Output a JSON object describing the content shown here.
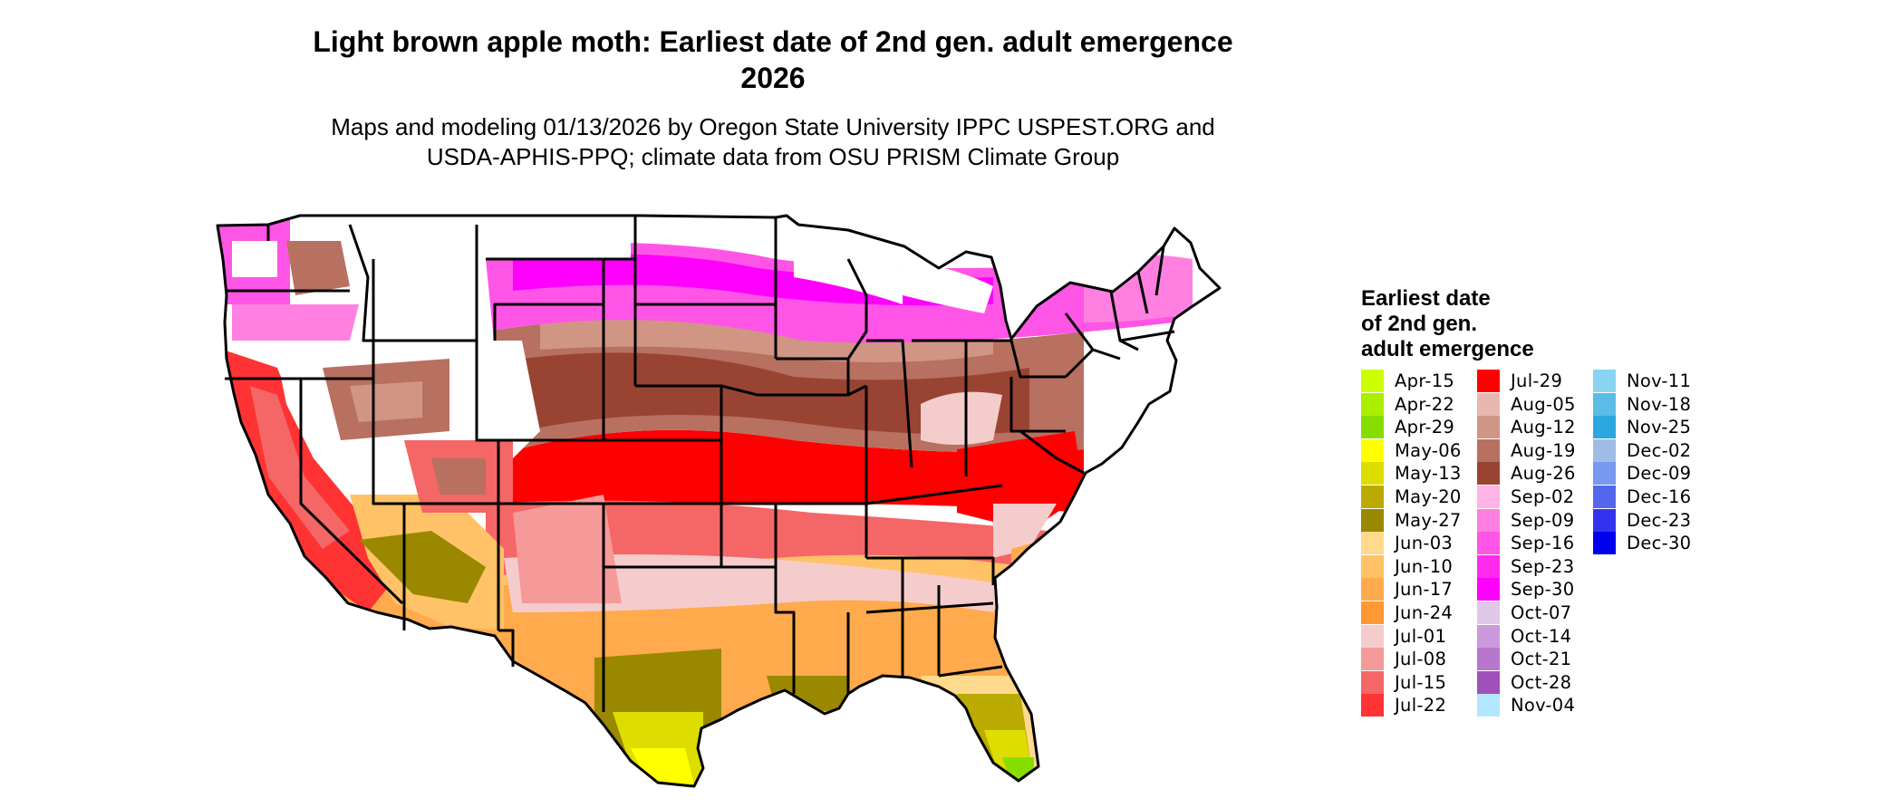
{
  "header": {
    "title_line1": "Light brown apple moth: Earliest date of 2nd gen. adult emergence",
    "title_line2": "2026",
    "subtitle_line1": "Maps and modeling 01/13/2026 by Oregon State University IPPC USPEST.ORG and",
    "subtitle_line2": "USDA-APHIS-PPQ; climate data from OSU PRISM Climate Group"
  },
  "legend": {
    "title_line1": "Earliest date",
    "title_line2": "of 2nd gen.",
    "title_line3": "adult emergence",
    "items": [
      {
        "label": "Apr-15",
        "color": "#ccff00"
      },
      {
        "label": "Apr-22",
        "color": "#aaee00"
      },
      {
        "label": "Apr-29",
        "color": "#88dd00"
      },
      {
        "label": "May-06",
        "color": "#ffff00"
      },
      {
        "label": "May-13",
        "color": "#dddd00"
      },
      {
        "label": "May-20",
        "color": "#bbaa00"
      },
      {
        "label": "May-27",
        "color": "#998800"
      },
      {
        "label": "Jun-03",
        "color": "#ffd98c"
      },
      {
        "label": "Jun-10",
        "color": "#ffc266"
      },
      {
        "label": "Jun-17",
        "color": "#ffaa4d"
      },
      {
        "label": "Jun-24",
        "color": "#ff9933"
      },
      {
        "label": "Jul-01",
        "color": "#f5cccc"
      },
      {
        "label": "Jul-08",
        "color": "#f59999"
      },
      {
        "label": "Jul-15",
        "color": "#f56666"
      },
      {
        "label": "Jul-22",
        "color": "#ff3333"
      },
      {
        "label": "Jul-29",
        "color": "#ff0000"
      },
      {
        "label": "Aug-05",
        "color": "#e8b8b0"
      },
      {
        "label": "Aug-12",
        "color": "#d09585"
      },
      {
        "label": "Aug-19",
        "color": "#b87060"
      },
      {
        "label": "Aug-26",
        "color": "#994433"
      },
      {
        "label": "Sep-02",
        "color": "#ffb3e6"
      },
      {
        "label": "Sep-09",
        "color": "#ff80e0"
      },
      {
        "label": "Sep-16",
        "color": "#ff55e6"
      },
      {
        "label": "Sep-23",
        "color": "#ff2aee"
      },
      {
        "label": "Sep-30",
        "color": "#ff00ff"
      },
      {
        "label": "Oct-07",
        "color": "#e0c8e8"
      },
      {
        "label": "Oct-14",
        "color": "#cc99dd"
      },
      {
        "label": "Oct-21",
        "color": "#b877cc"
      },
      {
        "label": "Oct-28",
        "color": "#a050bb"
      },
      {
        "label": "Nov-04",
        "color": "#b3e6ff"
      },
      {
        "label": "Nov-11",
        "color": "#88d4f2"
      },
      {
        "label": "Nov-18",
        "color": "#5bbde6"
      },
      {
        "label": "Nov-25",
        "color": "#2aa8dd"
      },
      {
        "label": "Dec-02",
        "color": "#a0bce6"
      },
      {
        "label": "Dec-09",
        "color": "#7799ee"
      },
      {
        "label": "Dec-16",
        "color": "#5566ee"
      },
      {
        "label": "Dec-23",
        "color": "#3333ee"
      },
      {
        "label": "Dec-30",
        "color": "#0000ee"
      }
    ]
  }
}
